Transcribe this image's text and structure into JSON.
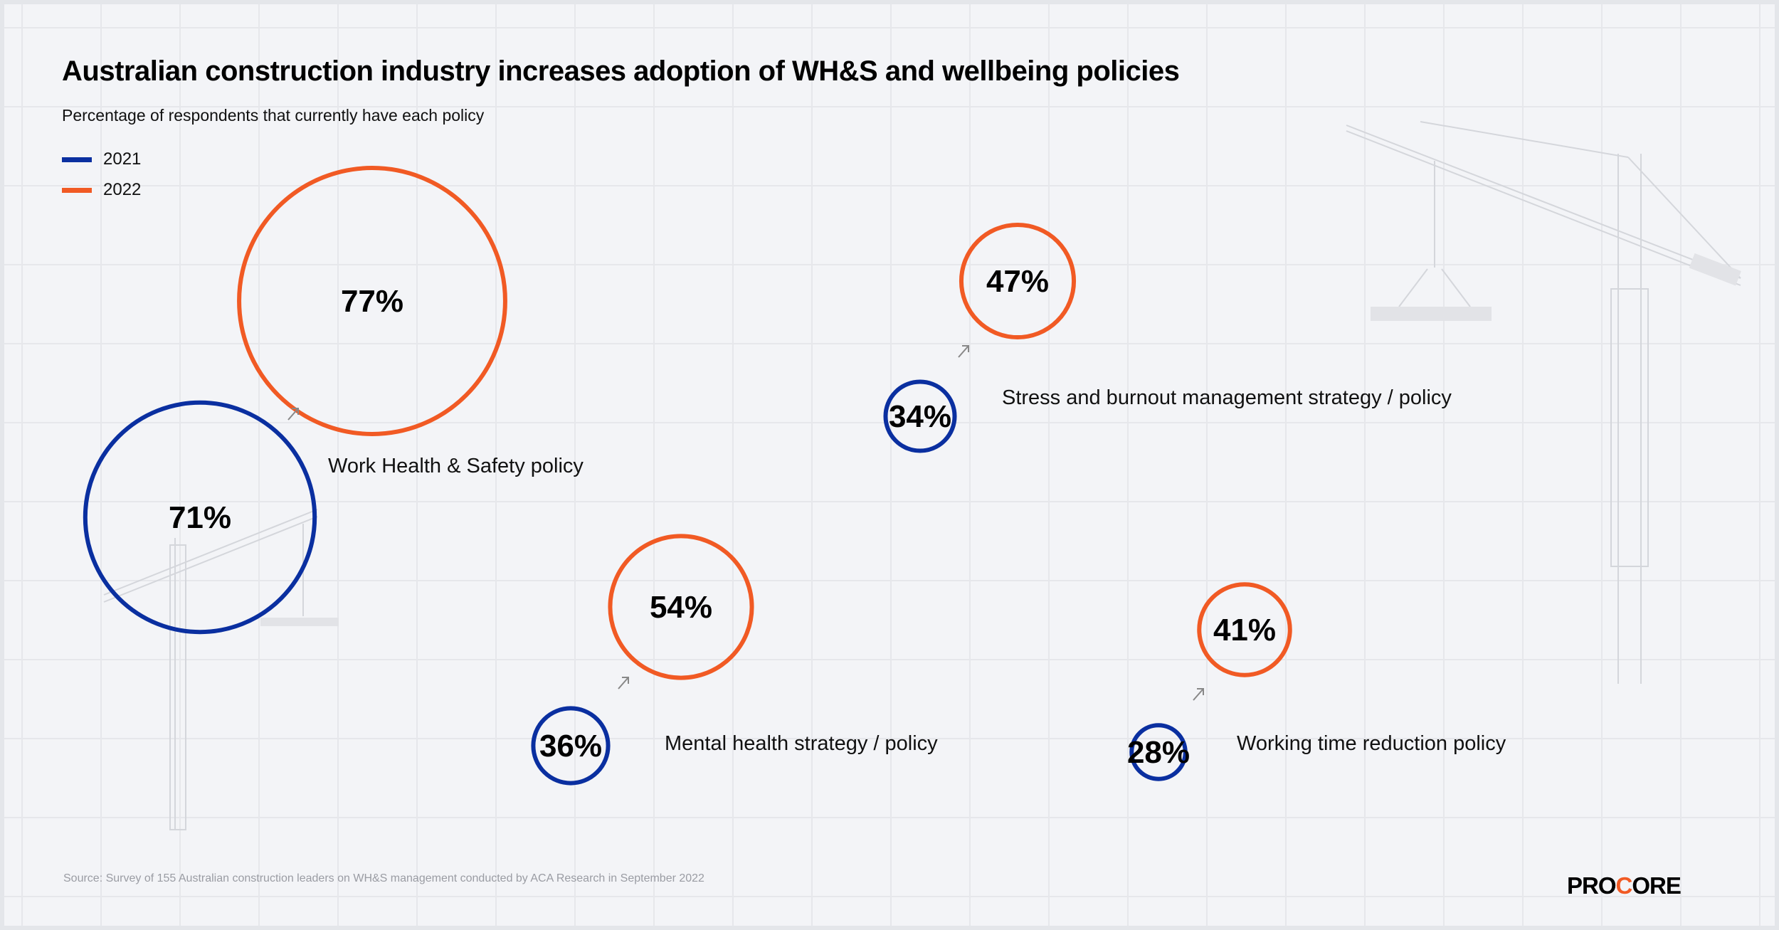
{
  "title": "Australian construction industry increases adoption of WH&S and wellbeing policies",
  "subtitle": "Percentage of respondents that currently have each policy",
  "legend": [
    {
      "label": "2021",
      "color": "#0a2fa0"
    },
    {
      "label": "2022",
      "color": "#f15a24"
    }
  ],
  "source": "Source: Survey of 155 Australian construction leaders on WH&S management conducted by ACA Research in September 2022",
  "logo": "PROCORE",
  "chart_data": {
    "type": "bubble",
    "title": "Australian construction industry increases adoption of WH&S and wellbeing policies",
    "subtitle": "Percentage of respondents that currently have each policy",
    "legend_placement": "top-left",
    "grid": true,
    "categories": [
      "Work Health & Safety policy",
      "Stress and burnout management strategy / policy",
      "Mental health strategy / policy",
      "Working time reduction policy"
    ],
    "series": [
      {
        "name": "2021",
        "color": "#0a2fa0",
        "values": [
          71,
          34,
          36,
          28
        ],
        "labels": [
          "71%",
          "34%",
          "36%",
          "28%"
        ]
      },
      {
        "name": "2022",
        "color": "#f15a24",
        "values": [
          77,
          47,
          54,
          41
        ],
        "labels": [
          "77%",
          "47%",
          "54%",
          "41%"
        ]
      }
    ]
  }
}
